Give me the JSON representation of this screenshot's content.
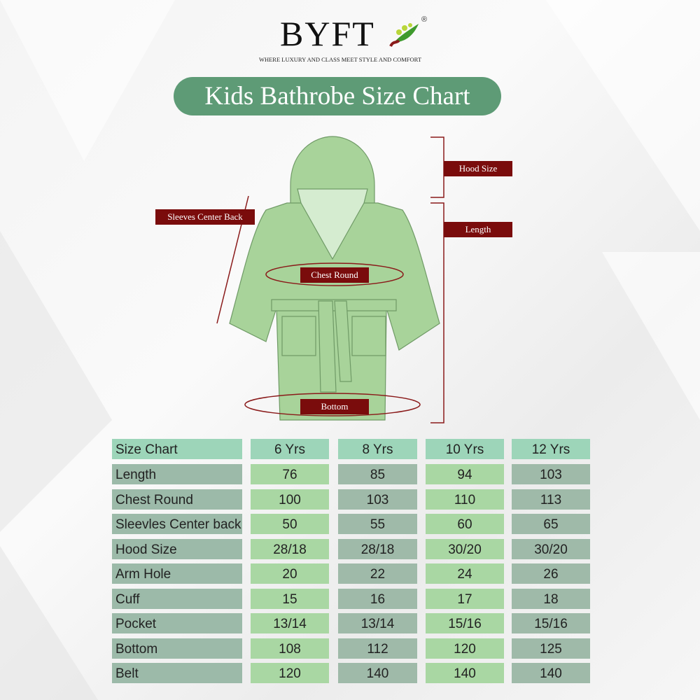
{
  "brand": {
    "name": "BYFT",
    "registered": "®",
    "tagline": "WHERE LUXURY AND CLASS MEET STYLE AND COMFORT"
  },
  "title": "Kids Bathrobe Size Chart",
  "diagram_labels": {
    "hood": "Hood Size",
    "length": "Length",
    "sleeves": "Sleeves Center Back",
    "chest": "Chest Round",
    "bottom": "Bottom"
  },
  "colors": {
    "title_bg": "#5e9b76",
    "tag_bg": "#7a0c0c",
    "robe": "#a8d39a",
    "header_cell": "#9dd5b9",
    "label_cell": "#9cbaa9",
    "light_cell": "#a9d7a3",
    "grey_cell": "#9fbaa9"
  },
  "table": {
    "header": "Size Chart",
    "sizes": [
      "6 Yrs",
      "8 Yrs",
      "10 Yrs",
      "12 Yrs"
    ],
    "rows": [
      {
        "label": "Length",
        "values": [
          "76",
          "85",
          "94",
          "103"
        ]
      },
      {
        "label": "Chest Round",
        "values": [
          "100",
          "103",
          "110",
          "113"
        ]
      },
      {
        "label": "Sleevles Center back",
        "values": [
          "50",
          "55",
          "60",
          "65"
        ]
      },
      {
        "label": "Hood Size",
        "values": [
          "28/18",
          "28/18",
          "30/20",
          "30/20"
        ]
      },
      {
        "label": "Arm Hole",
        "values": [
          "20",
          "22",
          "24",
          "26"
        ]
      },
      {
        "label": "Cuff",
        "values": [
          "15",
          "16",
          "17",
          "18"
        ]
      },
      {
        "label": "Pocket",
        "values": [
          "13/14",
          "13/14",
          "15/16",
          "15/16"
        ]
      },
      {
        "label": "Bottom",
        "values": [
          "108",
          "112",
          "120",
          "125"
        ]
      },
      {
        "label": "Belt",
        "values": [
          "120",
          "140",
          "140",
          "140"
        ]
      }
    ]
  }
}
